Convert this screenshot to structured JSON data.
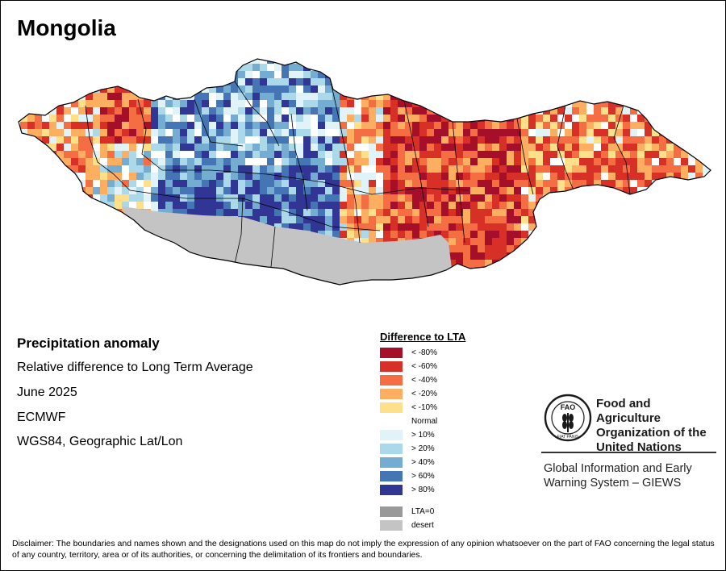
{
  "map": {
    "title": "Mongolia",
    "colors": {
      "ocean": "#ffffff",
      "desert": "#c4c4c4",
      "border": "#000000"
    }
  },
  "info": {
    "heading": "Precipitation anomaly",
    "description": "Relative difference to Long Term Average",
    "date": "June 2025",
    "source": "ECMWF",
    "projection": "WGS84, Geographic Lat/Lon"
  },
  "legend": {
    "title": "Difference to LTA",
    "items": [
      {
        "label": "< -80%",
        "color": "#a50f2a"
      },
      {
        "label": "< -60%",
        "color": "#d73027"
      },
      {
        "label": "< -40%",
        "color": "#f46d43"
      },
      {
        "label": "< -20%",
        "color": "#fdae61"
      },
      {
        "label": "< -10%",
        "color": "#fee08b"
      },
      {
        "label": "Normal",
        "color": "#ffffff"
      },
      {
        "label": "> 10%",
        "color": "#e0f3f8"
      },
      {
        "label": "> 20%",
        "color": "#abd9e9"
      },
      {
        "label": "> 40%",
        "color": "#74add1"
      },
      {
        "label": "> 60%",
        "color": "#4575b4"
      },
      {
        "label": "> 80%",
        "color": "#313695"
      }
    ],
    "extra": [
      {
        "label": "LTA=0",
        "color": "#999999"
      },
      {
        "label": "desert",
        "color": "#c4c4c4"
      }
    ]
  },
  "fao": {
    "org_name": "Food and Agriculture Organization of the United Nations",
    "program": "Global Information and Early Warning System – GIEWS",
    "emblem_text": "FAO",
    "motto": "FIAT PANIS",
    "color": "#1a1a1a"
  },
  "disclaimer": "Disclaimer: The boundaries and names shown and the designations used on this map do not imply the expression of any opinion whatsoever on the part of FAO concerning the legal status of any country, territory, area or of its authorities, or concerning the delimitation of its frontiers and boundaries."
}
